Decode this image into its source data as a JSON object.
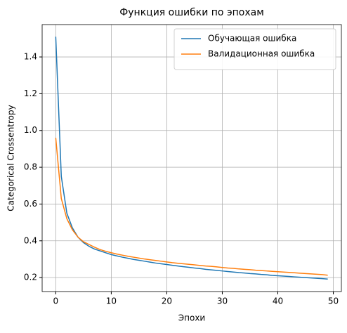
{
  "chart_data": {
    "type": "line",
    "title": "Функция ошибки по эпохам",
    "x_label": "Эпохи",
    "y_label": "Categorical Crossentropy",
    "x": [
      0,
      1,
      2,
      3,
      4,
      5,
      6,
      7,
      8,
      9,
      10,
      11,
      12,
      13,
      14,
      15,
      16,
      17,
      18,
      19,
      20,
      21,
      22,
      23,
      24,
      25,
      26,
      27,
      28,
      29,
      30,
      31,
      32,
      33,
      34,
      35,
      36,
      37,
      38,
      39,
      40,
      41,
      42,
      43,
      44,
      45,
      46,
      47,
      48,
      49
    ],
    "series": [
      {
        "name": "Обучающая ошибка",
        "color": "#1f77b4",
        "values": [
          1.51,
          0.75,
          0.55,
          0.47,
          0.42,
          0.39,
          0.37,
          0.355,
          0.345,
          0.335,
          0.325,
          0.318,
          0.311,
          0.305,
          0.299,
          0.294,
          0.289,
          0.284,
          0.279,
          0.275,
          0.271,
          0.267,
          0.263,
          0.259,
          0.256,
          0.252,
          0.249,
          0.245,
          0.242,
          0.239,
          0.236,
          0.233,
          0.23,
          0.227,
          0.225,
          0.222,
          0.22,
          0.217,
          0.215,
          0.212,
          0.21,
          0.208,
          0.206,
          0.204,
          0.202,
          0.2,
          0.198,
          0.196,
          0.194,
          0.192
        ]
      },
      {
        "name": "Валидационная ошибка",
        "color": "#ff7f0e",
        "values": [
          0.96,
          0.63,
          0.52,
          0.46,
          0.42,
          0.395,
          0.38,
          0.365,
          0.352,
          0.343,
          0.335,
          0.328,
          0.322,
          0.316,
          0.311,
          0.306,
          0.301,
          0.297,
          0.293,
          0.289,
          0.285,
          0.281,
          0.278,
          0.275,
          0.272,
          0.269,
          0.266,
          0.263,
          0.261,
          0.258,
          0.255,
          0.252,
          0.25,
          0.247,
          0.245,
          0.243,
          0.24,
          0.238,
          0.236,
          0.234,
          0.232,
          0.23,
          0.228,
          0.226,
          0.224,
          0.222,
          0.22,
          0.218,
          0.216,
          0.213
        ]
      }
    ],
    "xlim": [
      -2.45,
      51.45
    ],
    "xticks": [
      0,
      10,
      20,
      30,
      40,
      50
    ],
    "ylim": [
      0.124,
      1.576
    ],
    "yticks": [
      0.2,
      0.4,
      0.6,
      0.8,
      {
        "value": 1,
        "label": "1.0"
      },
      1.2,
      1.4
    ],
    "grid": true,
    "legend": "upper right"
  }
}
